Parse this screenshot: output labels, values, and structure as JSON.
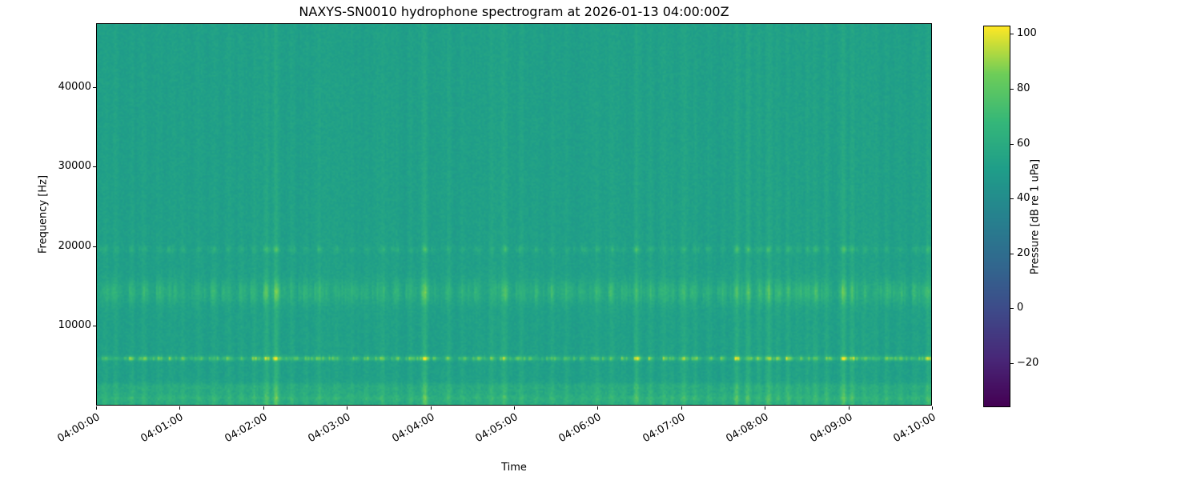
{
  "figure": {
    "background": "#ffffff",
    "frame_color": "#000000"
  },
  "chart_data": {
    "type": "heatmap",
    "title": "NAXYS-SN0010 hydrophone spectrogram at 2026-01-13 04:00:00Z",
    "xlabel": "Time",
    "ylabel": "Frequency [Hz]",
    "x_range_s": [
      0,
      600
    ],
    "x_ticks": [
      {
        "t": 0,
        "label": "04:00:00"
      },
      {
        "t": 60,
        "label": "04:01:00"
      },
      {
        "t": 120,
        "label": "04:02:00"
      },
      {
        "t": 180,
        "label": "04:03:00"
      },
      {
        "t": 240,
        "label": "04:04:00"
      },
      {
        "t": 300,
        "label": "04:05:00"
      },
      {
        "t": 360,
        "label": "04:06:00"
      },
      {
        "t": 420,
        "label": "04:07:00"
      },
      {
        "t": 480,
        "label": "04:08:00"
      },
      {
        "t": 540,
        "label": "04:09:00"
      },
      {
        "t": 600,
        "label": "04:10:00"
      }
    ],
    "ylim_hz": [
      0,
      48000
    ],
    "y_ticks_hz": [
      10000,
      20000,
      30000,
      40000
    ],
    "colormap": "viridis",
    "colorbar": {
      "label": "Pressure [dB re 1 uPa]",
      "ticks": [
        -20,
        0,
        20,
        40,
        60,
        80,
        100
      ],
      "clim": [
        -36,
        103
      ]
    },
    "field": {
      "background_db": 52,
      "pixel_noise_db": 3,
      "column_noise_db": 1.5,
      "seed": 20260113,
      "bands": [
        {
          "name": "low-broadband",
          "type": "low",
          "f_max_hz": 2300,
          "boost_db": 6.5,
          "speckle_db": 3,
          "transient_gain": 0.3
        },
        {
          "name": "low-line",
          "type": "gauss",
          "center_hz": 850,
          "sigma_hz": 320,
          "boost_db": 4,
          "burst_db": 0,
          "burst_prob": 0,
          "transient_gain": 0.3
        },
        {
          "name": "mid-band",
          "type": "gauss",
          "center_hz": 14200,
          "sigma_hz": 1450,
          "boost_db": 3,
          "burst_db": 11,
          "burst_prob": 0.3,
          "transient_gain": 1.0
        },
        {
          "name": "tonal-5800",
          "type": "gauss",
          "center_hz": 5850,
          "sigma_hz": 260,
          "boost_db": 6,
          "burst_db": 30,
          "burst_prob": 0.35,
          "transient_gain": 1.6
        },
        {
          "name": "tone-19600",
          "type": "gauss",
          "center_hz": 19600,
          "sigma_hz": 420,
          "boost_db": 0.5,
          "burst_db": 8,
          "burst_prob": 0.1,
          "transient_gain": 1.2
        }
      ],
      "transients": [
        {
          "t": 6,
          "a": 5
        },
        {
          "t": 14,
          "a": 4
        },
        {
          "t": 25,
          "a": 6
        },
        {
          "t": 34,
          "a": 5
        },
        {
          "t": 45,
          "a": 4
        },
        {
          "t": 52,
          "a": 5
        },
        {
          "t": 62,
          "a": 4
        },
        {
          "t": 73,
          "a": 5
        },
        {
          "t": 84,
          "a": 6
        },
        {
          "t": 95,
          "a": 4
        },
        {
          "t": 104,
          "a": 5
        },
        {
          "t": 113,
          "a": 6
        },
        {
          "t": 122,
          "a": 12
        },
        {
          "t": 129,
          "a": 16
        },
        {
          "t": 140,
          "a": 5
        },
        {
          "t": 150,
          "a": 4
        },
        {
          "t": 160,
          "a": 6
        },
        {
          "t": 172,
          "a": 5
        },
        {
          "t": 183,
          "a": 4
        },
        {
          "t": 194,
          "a": 5
        },
        {
          "t": 205,
          "a": 6
        },
        {
          "t": 215,
          "a": 4
        },
        {
          "t": 226,
          "a": 5
        },
        {
          "t": 236,
          "a": 16
        },
        {
          "t": 253,
          "a": 6
        },
        {
          "t": 263,
          "a": 4
        },
        {
          "t": 274,
          "a": 5
        },
        {
          "t": 284,
          "a": 6
        },
        {
          "t": 293,
          "a": 9
        },
        {
          "t": 305,
          "a": 5
        },
        {
          "t": 316,
          "a": 4
        },
        {
          "t": 327,
          "a": 6
        },
        {
          "t": 338,
          "a": 5
        },
        {
          "t": 350,
          "a": 4
        },
        {
          "t": 360,
          "a": 6
        },
        {
          "t": 370,
          "a": 5
        },
        {
          "t": 379,
          "a": 4
        },
        {
          "t": 388,
          "a": 12
        },
        {
          "t": 398,
          "a": 6
        },
        {
          "t": 408,
          "a": 5
        },
        {
          "t": 414,
          "a": 4
        },
        {
          "t": 422,
          "a": 9
        },
        {
          "t": 430,
          "a": 6
        },
        {
          "t": 440,
          "a": 5
        },
        {
          "t": 450,
          "a": 4
        },
        {
          "t": 460,
          "a": 13
        },
        {
          "t": 468,
          "a": 10
        },
        {
          "t": 476,
          "a": 5
        },
        {
          "t": 483,
          "a": 12
        },
        {
          "t": 490,
          "a": 6
        },
        {
          "t": 497,
          "a": 9
        },
        {
          "t": 505,
          "a": 5
        },
        {
          "t": 511,
          "a": 4
        },
        {
          "t": 517,
          "a": 8
        },
        {
          "t": 525,
          "a": 6
        },
        {
          "t": 537,
          "a": 13
        },
        {
          "t": 543,
          "a": 10
        },
        {
          "t": 552,
          "a": 5
        },
        {
          "t": 560,
          "a": 4
        },
        {
          "t": 568,
          "a": 6
        },
        {
          "t": 578,
          "a": 5
        },
        {
          "t": 588,
          "a": 4
        },
        {
          "t": 598,
          "a": 9
        }
      ]
    }
  }
}
